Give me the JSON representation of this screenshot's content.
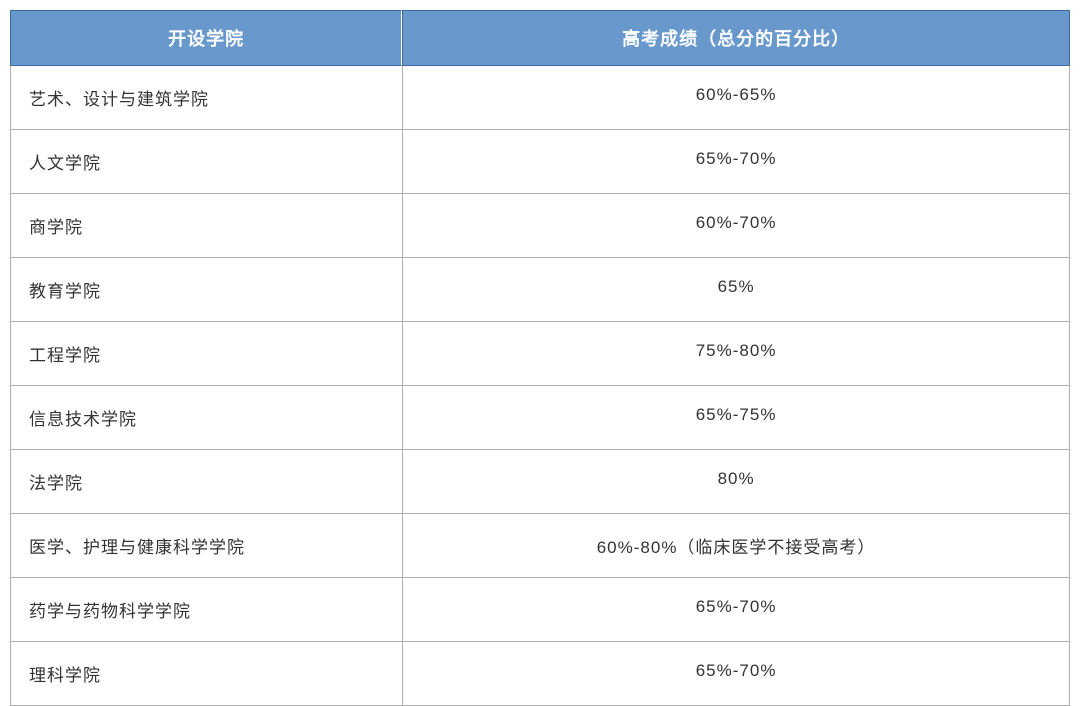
{
  "table": {
    "type": "table",
    "header_bg_color": "#6999cc",
    "header_text_color": "#ffffff",
    "header_border_color": "#3d6a9e",
    "body_border_color": "#b0b0b0",
    "body_text_color": "#333333",
    "background_color": "#ffffff",
    "header_fontsize": 18,
    "body_fontsize": 17,
    "col1_width_pct": 37,
    "col2_width_pct": 63,
    "col1_align": "left",
    "col2_align": "center",
    "columns": [
      {
        "label": "开设学院"
      },
      {
        "label": "高考成绩（总分的百分比）"
      }
    ],
    "rows": [
      {
        "college": "艺术、设计与建筑学院",
        "score": "60%-65%"
      },
      {
        "college": "人文学院",
        "score": "65%-70%"
      },
      {
        "college": "商学院",
        "score": "60%-70%"
      },
      {
        "college": "教育学院",
        "score": "65%"
      },
      {
        "college": "工程学院",
        "score": "75%-80%"
      },
      {
        "college": "信息技术学院",
        "score": "65%-75%"
      },
      {
        "college": "法学院",
        "score": "80%"
      },
      {
        "college": "医学、护理与健康科学学院",
        "score": "60%-80%（临床医学不接受高考）"
      },
      {
        "college": "药学与药物科学学院",
        "score": "65%-70%"
      },
      {
        "college": "理科学院",
        "score": "65%-70%"
      }
    ]
  }
}
